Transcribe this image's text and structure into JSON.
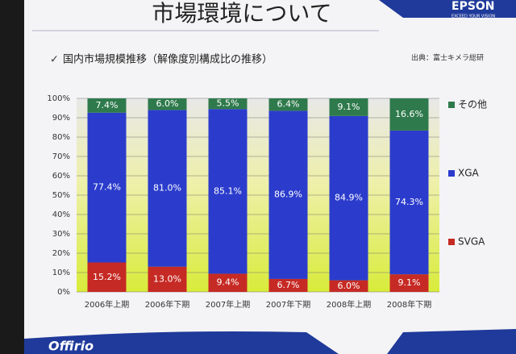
{
  "chart_data": {
    "type": "stacked-bar",
    "title": "市場環境について",
    "subtitle": "国内市場規模推移（解像度別構成比の推移）",
    "source": "出典：富士キメラ総研",
    "categories": [
      "2006年上期",
      "2006年下期",
      "2007年上期",
      "2007年下期",
      "2008年上期",
      "2008年下期"
    ],
    "series": [
      {
        "name": "SVGA",
        "color": "#c62a24",
        "values": [
          15.2,
          13.0,
          9.4,
          6.7,
          6.0,
          9.1
        ],
        "value_labels": [
          "15.2%",
          "13.0%",
          "9.4%",
          "6.7%",
          "6.0%",
          "9.1%"
        ]
      },
      {
        "name": "XGA",
        "color": "#2b3ccc",
        "values": [
          77.4,
          81.0,
          85.1,
          86.9,
          84.9,
          74.3
        ],
        "value_labels": [
          "77.4%",
          "81.0%",
          "85.1%",
          "86.9%",
          "84.9%",
          "74.3%"
        ]
      },
      {
        "name": "その他",
        "color": "#2f7a4c",
        "values": [
          7.4,
          6.0,
          5.5,
          6.4,
          9.1,
          16.6
        ],
        "value_labels": [
          "7.4%",
          "6.0%",
          "5.5%",
          "6.4%",
          "9.1%",
          "16.6%"
        ]
      }
    ],
    "ylim": [
      0,
      100
    ],
    "yticks": [
      {
        "value": 0,
        "label": "0%"
      },
      {
        "value": 10,
        "label": "10%"
      },
      {
        "value": 20,
        "label": "20%"
      },
      {
        "value": 30,
        "label": "30%"
      },
      {
        "value": 40,
        "label": "40%"
      },
      {
        "value": 50,
        "label": "50%"
      },
      {
        "value": 60,
        "label": "60%"
      },
      {
        "value": 70,
        "label": "70%"
      },
      {
        "value": 80,
        "label": "80%"
      },
      {
        "value": 90,
        "label": "90%"
      },
      {
        "value": 100,
        "label": "100%"
      }
    ],
    "grid": true,
    "legend": "right"
  },
  "slide": {
    "logo": "EPSON",
    "tagline": "EXCEED YOUR VISION",
    "footer_logo": "Offirio"
  }
}
